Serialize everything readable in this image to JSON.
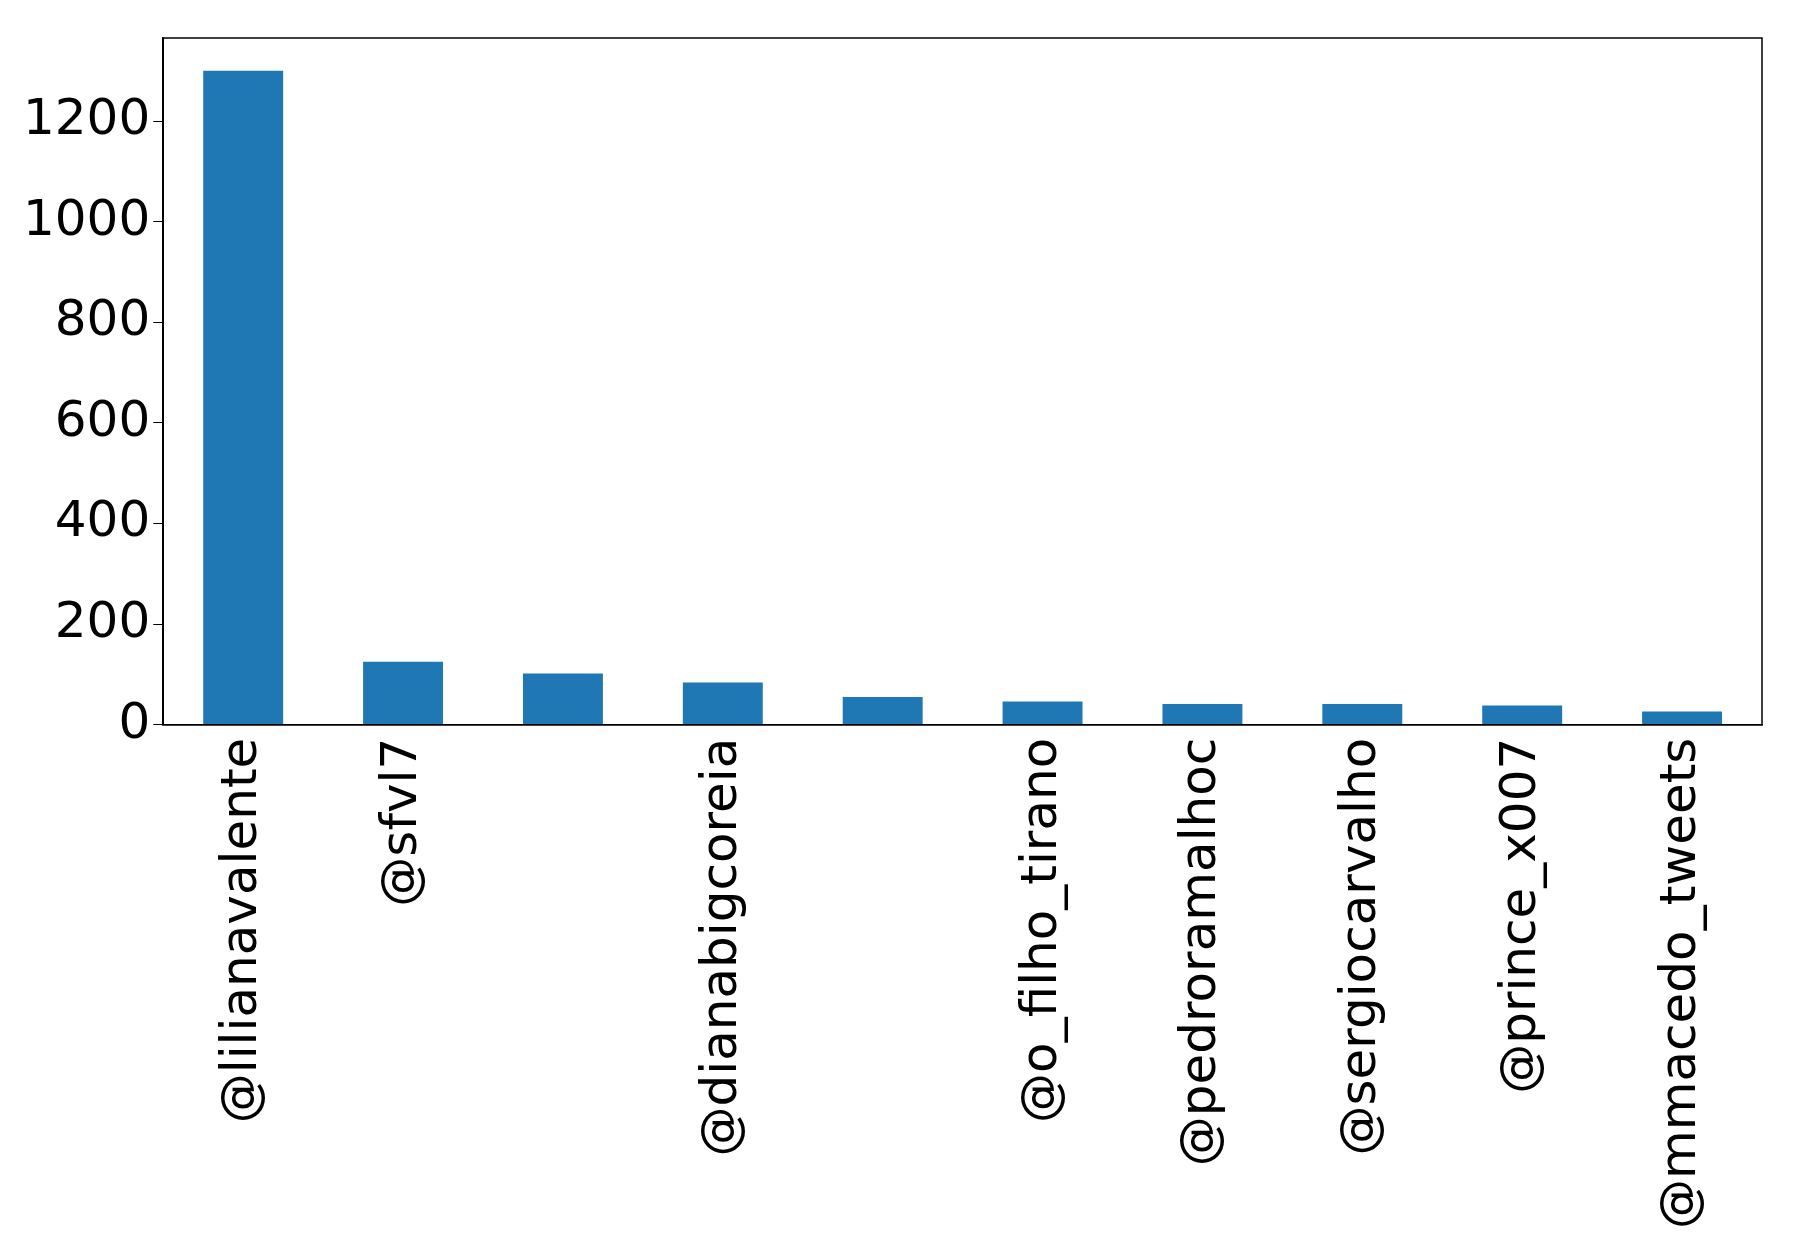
{
  "chart_data": {
    "type": "bar",
    "categories": [
      "@lilianavalente",
      "@sfvl7",
      null,
      "@dianabigcoreia",
      null,
      "@o_filho_tirano",
      "@pedroramalhoc",
      "@sergiocarvalho",
      "@prince_x007",
      "@mmacedo_tweets"
    ],
    "values": [
      1300,
      125,
      102,
      84,
      55,
      46,
      41,
      41,
      38,
      26
    ],
    "color": "#1f77b4",
    "ylim": [
      0,
      1365
    ],
    "yticks": [
      0,
      200,
      400,
      600,
      800,
      1000,
      1200
    ],
    "grid": false,
    "legend": false
  }
}
